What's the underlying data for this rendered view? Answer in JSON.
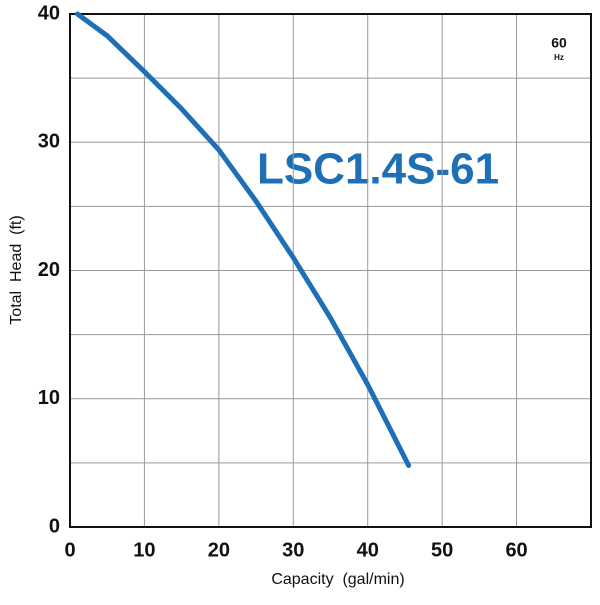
{
  "chart_data": {
    "type": "line",
    "xlabel": "Capacity  (gal/min)",
    "ylabel": "Total  Head  (ft)",
    "annotations": [
      "LSC1.4S-61",
      "60",
      "Hz"
    ],
    "x": [
      1,
      5,
      10,
      15,
      20,
      25,
      30,
      35,
      40,
      45.5
    ],
    "series": [
      {
        "name": "LSC1.4S-61",
        "color": "#1f6fb6",
        "values": [
          40,
          38.3,
          35.5,
          32.6,
          29.4,
          25.4,
          21,
          16.3,
          11.1,
          4.8
        ]
      }
    ],
    "xlim": [
      0,
      70
    ],
    "xticks": [
      0,
      10,
      20,
      30,
      40,
      50,
      60
    ],
    "ylim": [
      0,
      40
    ],
    "yticks": [
      0,
      10,
      20,
      30,
      40
    ],
    "yminor": [
      5,
      15,
      25,
      35
    ],
    "grid": true
  }
}
